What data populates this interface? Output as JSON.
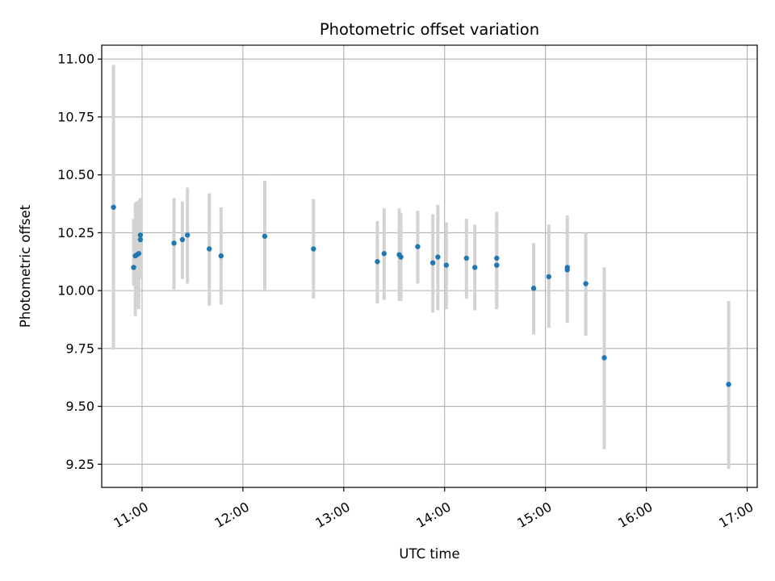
{
  "chart_data": {
    "type": "scatter",
    "title": "Photometric offset variation",
    "xlabel": "UTC time",
    "ylabel": "Photometric offset",
    "x_is_time": true,
    "xlim": [
      "10:36",
      "17:06"
    ],
    "ylim": [
      9.15,
      11.06
    ],
    "xticks": [
      "11:00",
      "12:00",
      "13:00",
      "14:00",
      "15:00",
      "16:00",
      "17:00"
    ],
    "yticks": [
      9.25,
      9.5,
      9.75,
      10.0,
      10.25,
      10.5,
      10.75,
      11.0
    ],
    "ytick_labels": [
      "9.25",
      "9.50",
      "9.75",
      "10.00",
      "10.25",
      "10.50",
      "10.75",
      "11.00"
    ],
    "grid": true,
    "point_color": "#1f77b4",
    "errorbar_color": "#d3d3d3",
    "points": [
      {
        "x": "10:43",
        "y": 10.36,
        "ylow": 9.745,
        "yhigh": 10.975
      },
      {
        "x": "10:55",
        "y": 10.1,
        "ylow": 10.02,
        "yhigh": 10.31
      },
      {
        "x": "10:56",
        "y": 10.15,
        "ylow": 9.89,
        "yhigh": 10.38
      },
      {
        "x": "10:57",
        "y": 10.155,
        "ylow": 9.93,
        "yhigh": 10.385
      },
      {
        "x": "10:58",
        "y": 10.16,
        "ylow": 9.92,
        "yhigh": 10.39
      },
      {
        "x": "10:59",
        "y": 10.22,
        "ylow": 10.05,
        "yhigh": 10.39
      },
      {
        "x": "10:59",
        "y": 10.24,
        "ylow": 10.08,
        "yhigh": 10.4
      },
      {
        "x": "11:19",
        "y": 10.205,
        "ylow": 10.005,
        "yhigh": 10.4
      },
      {
        "x": "11:24",
        "y": 10.22,
        "ylow": 10.05,
        "yhigh": 10.385
      },
      {
        "x": "11:27",
        "y": 10.24,
        "ylow": 10.03,
        "yhigh": 10.445
      },
      {
        "x": "11:40",
        "y": 10.18,
        "ylow": 9.935,
        "yhigh": 10.42
      },
      {
        "x": "11:47",
        "y": 10.15,
        "ylow": 9.94,
        "yhigh": 10.36
      },
      {
        "x": "12:13",
        "y": 10.235,
        "ylow": 9.995,
        "yhigh": 10.475
      },
      {
        "x": "12:42",
        "y": 10.18,
        "ylow": 9.965,
        "yhigh": 10.395
      },
      {
        "x": "13:20",
        "y": 10.125,
        "ylow": 9.945,
        "yhigh": 10.3
      },
      {
        "x": "13:24",
        "y": 10.16,
        "ylow": 9.96,
        "yhigh": 10.355
      },
      {
        "x": "13:33",
        "y": 10.155,
        "ylow": 9.955,
        "yhigh": 10.355
      },
      {
        "x": "13:34",
        "y": 10.145,
        "ylow": 9.955,
        "yhigh": 10.335
      },
      {
        "x": "13:44",
        "y": 10.19,
        "ylow": 10.03,
        "yhigh": 10.345
      },
      {
        "x": "13:53",
        "y": 10.12,
        "ylow": 9.905,
        "yhigh": 10.33
      },
      {
        "x": "13:56",
        "y": 10.145,
        "ylow": 9.915,
        "yhigh": 10.37
      },
      {
        "x": "14:01",
        "y": 10.11,
        "ylow": 9.92,
        "yhigh": 10.295
      },
      {
        "x": "14:13",
        "y": 10.14,
        "ylow": 9.965,
        "yhigh": 10.31
      },
      {
        "x": "14:18",
        "y": 10.1,
        "ylow": 9.915,
        "yhigh": 10.285
      },
      {
        "x": "14:31",
        "y": 10.14,
        "ylow": 9.92,
        "yhigh": 10.34
      },
      {
        "x": "14:31",
        "y": 10.11,
        "ylow": 9.92,
        "yhigh": 10.3
      },
      {
        "x": "14:53",
        "y": 10.01,
        "ylow": 9.81,
        "yhigh": 10.205
      },
      {
        "x": "15:02",
        "y": 10.06,
        "ylow": 9.84,
        "yhigh": 10.285
      },
      {
        "x": "15:13",
        "y": 10.09,
        "ylow": 9.86,
        "yhigh": 10.315
      },
      {
        "x": "15:13",
        "y": 10.1,
        "ylow": 9.87,
        "yhigh": 10.325
      },
      {
        "x": "15:24",
        "y": 10.03,
        "ylow": 9.805,
        "yhigh": 10.25
      },
      {
        "x": "15:35",
        "y": 9.71,
        "ylow": 9.315,
        "yhigh": 10.1
      },
      {
        "x": "16:49",
        "y": 9.595,
        "ylow": 9.23,
        "yhigh": 9.955
      }
    ]
  }
}
